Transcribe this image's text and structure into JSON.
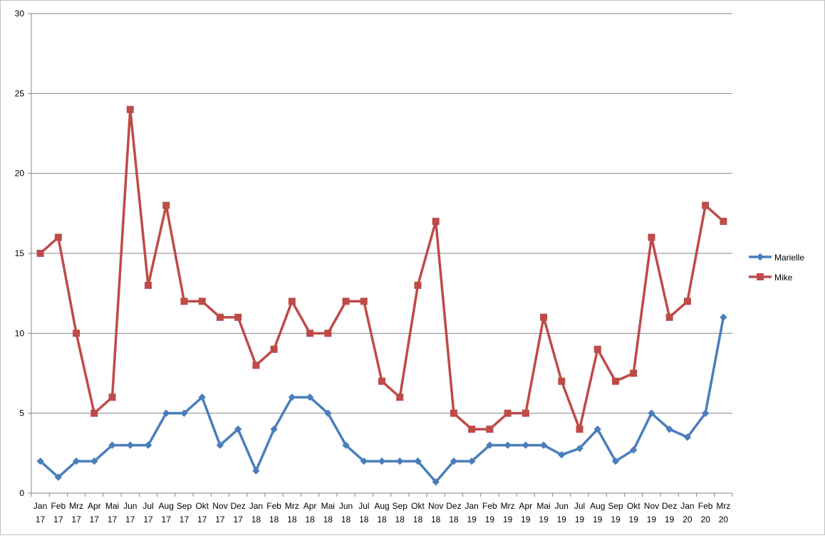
{
  "chart_data": {
    "type": "line",
    "title": "",
    "xlabel": "",
    "ylabel": "",
    "ylim": [
      0,
      30
    ],
    "yticks": [
      0,
      5,
      10,
      15,
      20,
      25,
      30
    ],
    "grid": true,
    "legend_position": "right",
    "categories": [
      [
        "Jan",
        "17"
      ],
      [
        "Feb",
        "17"
      ],
      [
        "Mrz",
        "17"
      ],
      [
        "Apr",
        "17"
      ],
      [
        "Mai",
        "17"
      ],
      [
        "Jun",
        "17"
      ],
      [
        "Jul",
        "17"
      ],
      [
        "Aug",
        "17"
      ],
      [
        "Sep",
        "17"
      ],
      [
        "Okt",
        "17"
      ],
      [
        "Nov",
        "17"
      ],
      [
        "Dez",
        "17"
      ],
      [
        "Jan",
        "18"
      ],
      [
        "Feb",
        "18"
      ],
      [
        "Mrz",
        "18"
      ],
      [
        "Apr",
        "18"
      ],
      [
        "Mai",
        "18"
      ],
      [
        "Jun",
        "18"
      ],
      [
        "Jul",
        "18"
      ],
      [
        "Aug",
        "18"
      ],
      [
        "Sep",
        "18"
      ],
      [
        "Okt",
        "18"
      ],
      [
        "Nov",
        "18"
      ],
      [
        "Dez",
        "18"
      ],
      [
        "Jan",
        "19"
      ],
      [
        "Feb",
        "19"
      ],
      [
        "Mrz",
        "19"
      ],
      [
        "Apr",
        "19"
      ],
      [
        "Mai",
        "19"
      ],
      [
        "Jun",
        "19"
      ],
      [
        "Jul",
        "19"
      ],
      [
        "Aug",
        "19"
      ],
      [
        "Sep",
        "19"
      ],
      [
        "Okt",
        "19"
      ],
      [
        "Nov",
        "19"
      ],
      [
        "Dez",
        "19"
      ],
      [
        "Jan",
        "20"
      ],
      [
        "Feb",
        "20"
      ],
      [
        "Mrz",
        "20"
      ]
    ],
    "series": [
      {
        "name": "Marielle",
        "color": "#4a7ebb",
        "marker": "diamond",
        "values": [
          2,
          1,
          2,
          2,
          3,
          3,
          3,
          5,
          5,
          6,
          3,
          4,
          1.4,
          4,
          6,
          6,
          5,
          3,
          2,
          2,
          2,
          2,
          0.7,
          2,
          2,
          3,
          3,
          3,
          3,
          2.4,
          2.8,
          4,
          2,
          2.7,
          5,
          4,
          3.5,
          5,
          11
        ]
      },
      {
        "name": "Mike",
        "color": "#be4b48",
        "marker": "square",
        "values": [
          15,
          16,
          10,
          5,
          6,
          24,
          13,
          18,
          12,
          12,
          11,
          11,
          8,
          9,
          12,
          10,
          10,
          12,
          12,
          7,
          6,
          13,
          17,
          5,
          4,
          4,
          5,
          5,
          11,
          7,
          4,
          9,
          7,
          7.5,
          16,
          11,
          12,
          18,
          17
        ]
      }
    ]
  }
}
